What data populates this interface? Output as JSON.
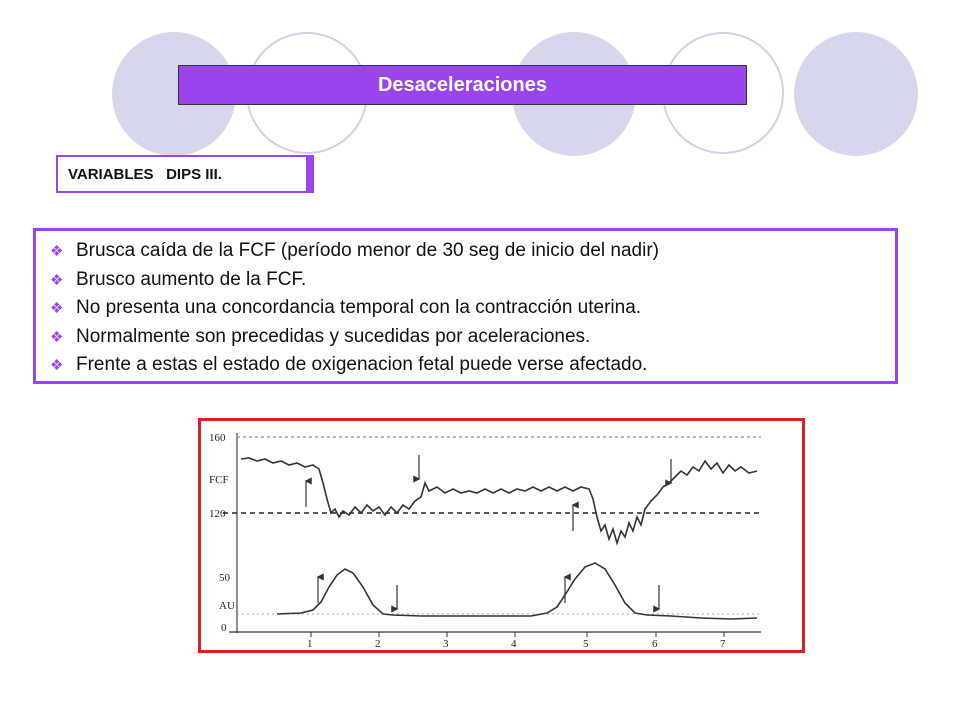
{
  "header": {
    "title": "Desaceleraciones"
  },
  "section": {
    "label": "VARIABLES   DIPS III."
  },
  "bullets": [
    "Brusca caída de la FCF (período menor de 30 seg de inicio del nadir)",
    "Brusco aumento de la FCF.",
    "No presenta una concordancia temporal con la contracción uterina.",
    "Normalmente son precedidas y sucedidas por aceleraciones.",
    "Frente a estas el estado de oxigenacion fetal puede verse afectado."
  ],
  "bullet_icon": "diamond-cluster-icon",
  "colors": {
    "accent": "#9a44ee",
    "figure_border": "#dd1f1f",
    "circle_fill": "#d6d6ec"
  },
  "figure": {
    "y_labels": {
      "top": "160",
      "mid": "FCF",
      "base": "120"
    },
    "lower_labels": {
      "top": "50",
      "mid": "AU",
      "base": "0"
    },
    "x_ticks": [
      "1",
      "2",
      "3",
      "4",
      "5",
      "6",
      "7"
    ]
  }
}
